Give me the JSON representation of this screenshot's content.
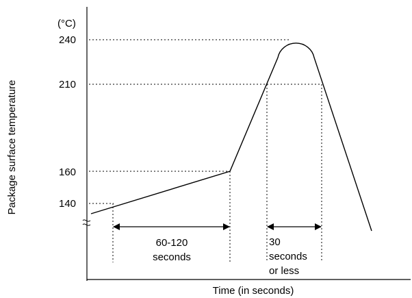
{
  "diagram": {
    "unit_label": "(°C)",
    "y_axis_label": "Package surface temperature",
    "x_axis_label": "Time (in seconds)",
    "temperature_ticks": [
      "240",
      "210",
      "160",
      "140"
    ],
    "preheat_duration": {
      "line1": "60-120",
      "line2": "seconds"
    },
    "peak_duration": {
      "line1": "30",
      "line2": "seconds",
      "line3": "or less"
    }
  }
}
